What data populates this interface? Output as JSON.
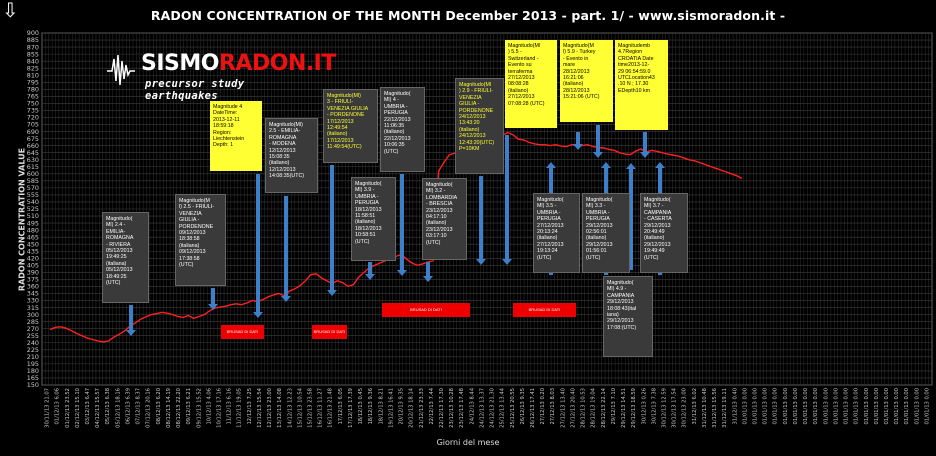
{
  "title": "RADON CONCENTRATION OF THE MONTH  December  2013 - part.  1/  - www.sismoradon.it -",
  "logo": {
    "line1_a": "SISMO",
    "line1_b": "RADON.IT",
    "line2": "precursor study earthquakes"
  },
  "chart_data": {
    "type": "line",
    "title": "RADON CONCENTRATION OF THE MONTH  December  2013 - part.  1/  - www.sismoradon.it -",
    "xlabel": "Giorni del mese",
    "ylabel": "RADON CONCENTRATION VALUE",
    "ylim": [
      150,
      900
    ],
    "ytick_step": 15,
    "ytick_labels": [
      "150",
      "165",
      "180",
      "195",
      "210",
      "225",
      "240",
      "255",
      "270",
      "285",
      "300",
      "315",
      "330",
      "345",
      "360",
      "375",
      "390",
      "405",
      "420",
      "435",
      "450",
      "465",
      "480",
      "495",
      "510",
      "525",
      "540",
      "555",
      "570",
      "585",
      "600",
      "615",
      "630",
      "645",
      "660",
      "675",
      "690",
      "705",
      "720",
      "735",
      "750",
      "765",
      "780",
      "795",
      "810",
      "825",
      "840",
      "855",
      "870",
      "885",
      "900"
    ],
    "grid": true,
    "x_labels": [
      "30/11/13 21.07",
      "01/12/13 6.06",
      "01/12/13 23.52",
      "02/12/13 15.10",
      "03/12/13 6.47",
      "04/12/13 15.57",
      "05/12/13 6.38",
      "05/12/13 18.16",
      "06/12/13 6.39",
      "07/12/13 8.37",
      "07/12/13 20.16",
      "08/12/13 6.20",
      "08/12/13 14.19",
      "08/12/13 22.20",
      "09/12/13 6.21",
      "09/12/13 15.52",
      "10/12/13 4.06",
      "10/12/13 17.16",
      "11/12/13 6.16",
      "11/12/13 19.05",
      "12/12/13 7.25",
      "12/12/13 15.54",
      "12/12/13 23.00",
      "13/12/13 14.08",
      "14/12/13 12.23",
      "15/12/13 10.54",
      "15/12/13 23.58",
      "16/12/13 11.27",
      "16/12/13 21.48",
      "17/12/13 6.05",
      "17/12/13 17.39",
      "18/12/13 0.45",
      "18/12/13 9.36",
      "18/12/13 8.21",
      "19/12/13 16.41",
      "20/12/13 9.35",
      "20/12/13 18.14",
      "21/12/13 23.33",
      "22/12/13 7.44",
      "22/12/13 17.30",
      "23/12/13 10.28",
      "23/12/13 17.48",
      "24/12/13 8.44",
      "24/12/13 13.37",
      "24/12/13 21.30",
      "25/12/13 13.44",
      "25/12/13 20.55",
      "26/12/13 9.35",
      "26/12/13 17.41",
      "27/12/13 0.20",
      "27/12/13 8.03",
      "27/12/13 13.40",
      "27/12/13 20.40",
      "28/12/13 10.53",
      "28/12/13 19.04",
      "28/12/13 22.14",
      "29/12/13 7.10",
      "29/12/13 14.51",
      "29/12/13 18.59",
      "30/12/13 0.26",
      "30/12/13 7.38",
      "30/12/13 12.59",
      "30/12/13 17.54",
      "30/12/13 23.00",
      "31/12/13 6.02",
      "31/12/13 10.48",
      "31/12/13 15.56",
      "31/12/13 19.11",
      "31/12/13 0.40",
      "01/01/13 0.00",
      "01/01/13 0.00",
      "01/01/13 0.00",
      "01/01/13 0.00",
      "01/01/13 0.00",
      "01/01/13 0.00",
      "01/01/13 0.00",
      "01/01/13 0.00",
      "01/01/13 0.00",
      "01/01/13 0.00",
      "01/01/13 0.00",
      "01/01/13 0.00",
      "01/01/13 0.00",
      "01/01/13 0.00",
      "01/01/13 0.00",
      "01/01/13 0.00",
      "01/01/13 0.00",
      "01/01/13 0.00",
      "01/01/13 0.00"
    ],
    "series": [
      {
        "color": "#ff2020",
        "values": [
          268,
          273,
          274,
          271,
          266,
          260,
          255,
          250,
          247,
          244,
          242,
          244,
          252,
          258,
          265,
          275,
          282,
          290,
          295,
          300,
          302,
          305,
          303,
          300,
          296,
          294,
          298,
          292,
          296,
          300,
          308,
          314,
          316,
          318,
          321,
          323,
          321,
          325,
          330,
          328,
          332,
          338,
          342,
          345,
          340,
          350,
          355,
          362,
          372,
          385,
          387,
          378,
          372,
          366,
          372,
          368,
          360,
          364,
          380,
          390,
          400,
          405,
          410,
          415,
          420,
          424,
          428,
          418,
          410,
          405,
          408,
          412,
          415,
          606,
          624,
          640,
          644,
          648,
          652,
          655,
          660,
          664,
          667,
          670,
          676,
          682,
          688,
          683,
          674,
          672,
          667,
          664,
          662,
          662,
          660,
          662,
          659,
          658,
          662,
          661,
          660,
          662,
          658,
          656,
          655,
          652,
          650,
          645,
          642,
          641,
          648,
          653,
          646,
          650,
          648,
          645,
          642,
          640,
          638,
          634,
          630,
          628,
          624,
          620,
          616,
          612,
          608,
          604,
          600,
          596,
          590
        ]
      }
    ]
  },
  "red_boxes": [
    {
      "text": "BRUSAD DI DATI"
    },
    {
      "text": "BRUSAD DI DATI"
    },
    {
      "text": "BRUSAD DI DATI"
    },
    {
      "text": "BRUSAD DI DATI"
    }
  ],
  "annotations": [
    {
      "style": "dark",
      "text": "Magnitudo(\nMl) 2.4 -\nEMILIA-\nROMAGNA\n- RIVIERA\n05/12/2013\n19:49:25\n(italiana)\n05/12/2013\n18:49:25\n(UTC)"
    },
    {
      "style": "dark",
      "text": "Magnitudo(M\nl) 2.5 - FRIULI-\nVENEZIA\nGIULIA -\nPORDENONE\n09/12/2013\n18:38:58\n(italiana)\n09/12/2013\n17:38:58\n(UTC)"
    },
    {
      "style": "yellow",
      "text": "Magnitude 4\nDateTime:\n2013-12-11\n18:59:18\nRegion:\nLiechtenstein\nDepth: 1"
    },
    {
      "style": "dark",
      "text": "Magnitudo(Ml)\n2.5 - EMILIA-\nROMAGNA\n- MODENA\n12/12/2013\n15:08:35\n(italiano)\n12/12/2013\n14:08:35(UTC)"
    },
    {
      "style": "dy",
      "text": "Magnitudo(Ml)\n3 - FRIULI-\nVENEZIA GIULIA\n- PORDENONE\n17/12/2013\n12:49:54\n(italiano)\n17/12/2013\n11:49:54(UTC)"
    },
    {
      "style": "dark",
      "text": "Magnitudo(\nMl) 4 -\nUMBRIA -\nPERUGIA\n22/12/2013\n11:06:35\n(italiano)\n22/12/2013\n10:06:35\n(UTC)"
    },
    {
      "style": "dark",
      "text": "Magnitudo(\nMl) 3.9 -\nUMBRIA -\nPERUGIA\n18/12/2013\n11:58:51\n(italiano)\n18/12/2013\n10:58:51\n(UTC)"
    },
    {
      "style": "dark",
      "text": "Magnitudo(\nMl) 3.2 -\nLOMBARDIA\n- BRESCIA\n23/12/2013\n04:17:10\n(italiano)\n23/12/2013\n03:17:10\n(UTC)"
    },
    {
      "style": "dy",
      "text": "Magnitudo(Ml\n) 2.9 - FRIULI-\nVENEZIA\nGIULIA -\nPORDENONE\n24/12/2013\n13:43:20\n(italiano)\n24/12/2013\n12:43:20(UTC)\nP=10KM"
    },
    {
      "style": "yellow",
      "text": "Magnitudo(Ml\n) 5.5 -\nSwitzerland -\nEvento su\nterraferma\n27/12/2013\n08:08:28\n(italiano)\n27/12/2013\n07:08:28 (UTC)"
    },
    {
      "style": "yellow",
      "text": "Magnitudo(M\nl) 5.9 - Turkey\n- Evento in\nmare\n28/12/2013\n16:21:06\n(italiano)\n28/12/2013\n15:21:06 (UTC)"
    },
    {
      "style": "yellow",
      "text": "Magnitudemb\n4.7Region\nCROATIA Date\ntime2013-12-\n29 06:54:59.0\nUTCLocation43\n.10 N ; 17.30\nEDepth10 km"
    },
    {
      "style": "dark",
      "text": "Magnitudo(\nMl) 3.5 -\nUMBRIA -\nPERUGIA\n27/12/2013\n20:13:24\n(italiano)\n27/12/2013\n19:13:24\n(UTC)"
    },
    {
      "style": "dark",
      "text": "Magnitudo(\nMl) 3.3 -\nUMBRIA -\nPERUGIA\n29/12/2013\n02:56:01\n(italiano)\n29/12/2013\n01:56:01\n(UTC)"
    },
    {
      "style": "dark",
      "text": "Magnitudo(\nMl) 3.7 -\nCAMPANIA\n- CASERTA\n29/12/2013\n20:49:49\n(italiano)\n29/12/2013\n19:49:49\n(UTC)"
    },
    {
      "style": "dark",
      "text": "Magnitudo(\nMl) 4.9 -\nCAMPANIA\n29/12/2013\n18:08:43(ital\niana)\n29/12/2013\n17:08:(UTC)"
    }
  ],
  "colors": {
    "background": "#000000",
    "grid": "#3c3c3c",
    "line": "#ff2020",
    "arrow": "#3d7fc8",
    "yellow_box": "#ffff33",
    "dark_box": "#3a3a3a",
    "red_box": "#ee0000"
  }
}
